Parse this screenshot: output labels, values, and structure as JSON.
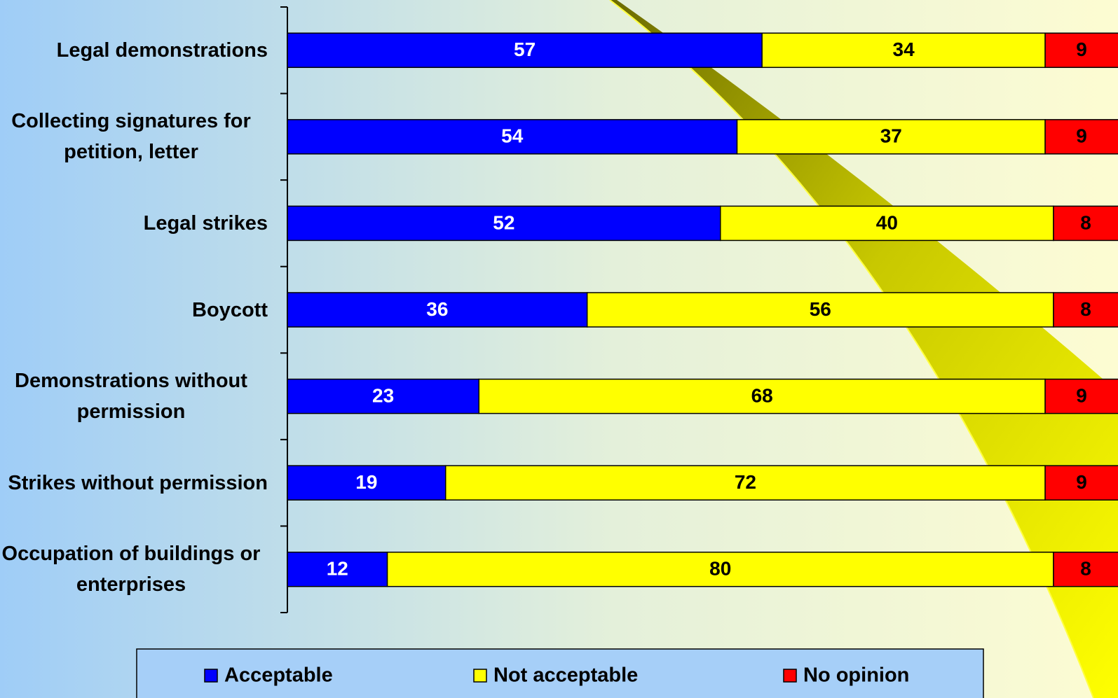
{
  "chart_data": {
    "type": "bar",
    "orientation": "horizontal",
    "stacked": true,
    "categories": [
      "Legal demonstrations",
      "Collecting signatures for petition, letter",
      "Legal strikes",
      "Boycott",
      "Demonstrations without permission",
      "Strikes without permission",
      "Occupation of buildings or enterprises"
    ],
    "series": [
      {
        "name": "Acceptable",
        "color": "#0000ff",
        "label_color": "#ffffff",
        "values": [
          57,
          54,
          52,
          36,
          23,
          19,
          12
        ]
      },
      {
        "name": "Not acceptable",
        "color": "#ffff00",
        "label_color": "#000000",
        "values": [
          34,
          37,
          40,
          56,
          68,
          72,
          80
        ]
      },
      {
        "name": "No opinion",
        "color": "#ff0000",
        "label_color": "#000000",
        "values": [
          9,
          9,
          8,
          8,
          9,
          9,
          8
        ]
      }
    ],
    "xlim": [
      0,
      100
    ],
    "legend": "bottom"
  }
}
